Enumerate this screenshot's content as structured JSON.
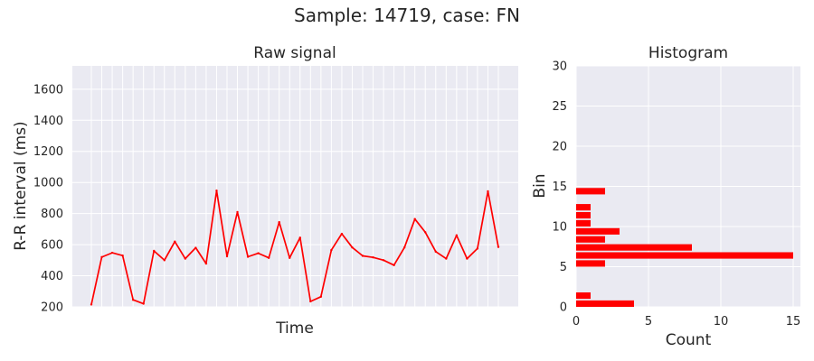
{
  "figure": {
    "title": "Sample: 14719, case: FN"
  },
  "colors": {
    "plot_bg": "#eaeaf2",
    "grid": "#ffffff",
    "series": "#ff0000",
    "text": "#262626"
  },
  "chart_data": [
    {
      "type": "line",
      "title": "Raw signal",
      "xlabel": "Time",
      "ylabel": "R-R interval (ms)",
      "ylim": [
        200,
        1750
      ],
      "yticks": [
        200,
        400,
        600,
        800,
        1000,
        1200,
        1400,
        1600
      ],
      "xtick_labels_shown": false,
      "grid": true,
      "series": [
        {
          "values": [
            215,
            520,
            548,
            530,
            245,
            220,
            560,
            500,
            620,
            510,
            580,
            478,
            948,
            525,
            810,
            522,
            545,
            515,
            745,
            515,
            645,
            235,
            265,
            565,
            670,
            582,
            528,
            518,
            500,
            468,
            582,
            765,
            680,
            555,
            510,
            660,
            510,
            575,
            943,
            585
          ]
        }
      ]
    },
    {
      "type": "bar",
      "orientation": "horizontal",
      "title": "Histogram",
      "xlabel": "Count",
      "ylabel": "Bin",
      "xlim": [
        0,
        15.5
      ],
      "xticks": [
        0,
        5,
        10,
        15
      ],
      "ylim": [
        0,
        30
      ],
      "yticks": [
        0,
        5,
        10,
        15,
        20,
        25,
        30
      ],
      "grid": true,
      "bins": [
        0,
        1,
        5,
        6,
        7,
        8,
        9,
        10,
        11,
        12,
        14
      ],
      "counts": [
        4,
        1,
        2,
        15,
        8,
        2,
        3,
        1,
        1,
        1,
        2
      ]
    }
  ]
}
